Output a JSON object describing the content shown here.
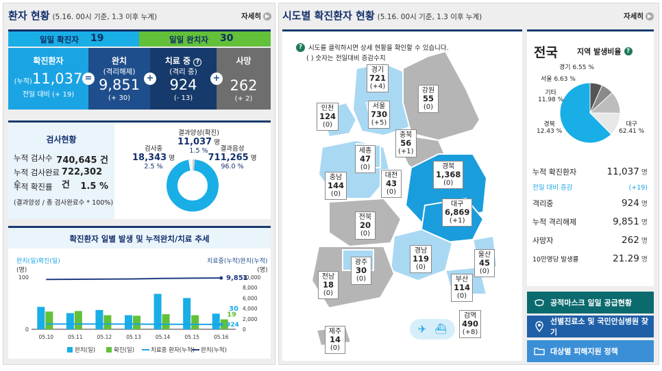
{
  "left": {
    "title": "환자 현황",
    "subtitle": "(5.16. 00시 기준, 1.3 이후 누계)",
    "more": "자세히",
    "daily_conf_label": "일일 확진자",
    "daily_conf": "19",
    "daily_rel_label": "일일 완치자",
    "daily_rel": "30",
    "confirmed": {
      "label": "확진환자",
      "prefix": "(누적)",
      "value": "11,037",
      "delta": "전일 대비 (+ 19)"
    },
    "released": {
      "label": "완치",
      "sub": "(격리해제)",
      "value": "9,851",
      "delta": "(+ 30)"
    },
    "treating": {
      "label": "치료 중",
      "sub": "(격리 중)",
      "value": "924",
      "delta": "(- 13)"
    },
    "deaths": {
      "label": "사망",
      "value": "262",
      "delta": "(+ 2)"
    },
    "ops": {
      "eq": "=",
      "plus": "+"
    },
    "test": {
      "title": "검사현황",
      "rows": [
        {
          "k": "누적 검사수",
          "v": "740,645 건"
        },
        {
          "k": "누적 검사완료수",
          "v": "722,302 건"
        },
        {
          "k": "누적 확진률",
          "v": "1.5 %"
        }
      ],
      "note": "(결과양성 / 총 검사완료수 * 100%)",
      "pos_label": "결과양성(확진)",
      "pos_value": "11,037",
      "pos_unit": "명",
      "pos_pct": "1.5 %",
      "testing_label": "검사중",
      "testing_value": "18,343",
      "testing_unit": "명",
      "testing_pct": "2.5 %",
      "neg_label": "결과음성",
      "neg_value": "711,265",
      "neg_unit": "명",
      "neg_pct": "96.0 %"
    },
    "trend": {
      "title": "확진환자 일별 발생 및 누적완치/치료 추세",
      "left_axis": "완치(일)확진(일)",
      "left_unit": "(명)",
      "right_axis": "치료중(누적)완치(누적)",
      "right_unit": "(명)",
      "yl": [
        "100",
        "0"
      ],
      "yr": [
        "10,000",
        "8,000",
        "6,000",
        "4,000",
        "2,000",
        "0"
      ],
      "last_rel": "30",
      "last_conf": "19",
      "last_treat": "924",
      "cum_rel": "9,851",
      "legend": [
        "완치(일)",
        "확진(일)",
        "치료중 환자(누적)",
        "완치(누적)"
      ]
    }
  },
  "chart_data": {
    "type": "bar",
    "categories": [
      "05.10",
      "05.11",
      "05.12",
      "05.13",
      "05.14",
      "05.15",
      "05.16"
    ],
    "series": [
      {
        "name": "완치(일)",
        "values": [
          43,
          31,
          37,
          27,
          68,
          60,
          30
        ]
      },
      {
        "name": "확진(일)",
        "values": [
          34,
          35,
          27,
          26,
          29,
          27,
          19
        ]
      },
      {
        "name": "치료중 환자(누적)",
        "values": [
          1008,
          1005,
          999,
          981,
          962,
          937,
          924
        ]
      },
      {
        "name": "완치(누적)",
        "values": [
          9568,
          9610,
          9632,
          9665,
          9762,
          9821,
          9851
        ]
      }
    ],
    "ylim_left": [
      0,
      100
    ],
    "ylim_right": [
      0,
      10000
    ]
  },
  "map": {
    "title": "시도별 확진환자 현황",
    "subtitle": "(5.16. 00시 기준, 1.3 이후 누계)",
    "more": "자세히",
    "help": "시도를 클릭하시면 상세 현황을 확인할 수 있습니다.",
    "help2": "( ) 숫자는 전일대비 증감수치",
    "regions": [
      {
        "n": "경기",
        "v": "721",
        "d": "(+4)"
      },
      {
        "n": "강원",
        "v": "55",
        "d": "(0)"
      },
      {
        "n": "인천",
        "v": "124",
        "d": "(0)"
      },
      {
        "n": "서울",
        "v": "730",
        "d": "(+5)"
      },
      {
        "n": "충북",
        "v": "56",
        "d": "(+1)"
      },
      {
        "n": "세종",
        "v": "47",
        "d": "(0)"
      },
      {
        "n": "충남",
        "v": "144",
        "d": "(0)"
      },
      {
        "n": "대전",
        "v": "43",
        "d": "(0)"
      },
      {
        "n": "경북",
        "v": "1,368",
        "d": "(0)"
      },
      {
        "n": "대구",
        "v": "6,869",
        "d": "(+1)"
      },
      {
        "n": "전북",
        "v": "20",
        "d": "(0)"
      },
      {
        "n": "경남",
        "v": "119",
        "d": "(0)"
      },
      {
        "n": "울산",
        "v": "45",
        "d": "(0)"
      },
      {
        "n": "광주",
        "v": "30",
        "d": "(0)"
      },
      {
        "n": "전남",
        "v": "18",
        "d": "(0)"
      },
      {
        "n": "부산",
        "v": "114",
        "d": "(0)"
      },
      {
        "n": "검역",
        "v": "490",
        "d": "(+8)"
      },
      {
        "n": "제주",
        "v": "14",
        "d": "(0)"
      }
    ]
  },
  "nation": {
    "title": "전국",
    "ratio_label": "지역 발생비율",
    "pie": [
      {
        "n": "대구",
        "p": "62.41 %",
        "v": 62.41,
        "c": "#19aee6"
      },
      {
        "n": "경북",
        "p": "12.43 %",
        "v": 12.43,
        "c": "#e8e8e8"
      },
      {
        "n": "기타",
        "p": "11.98 %",
        "v": 11.98,
        "c": "#bdbdbd"
      },
      {
        "n": "서울",
        "p": "6.63 %",
        "v": 6.63,
        "c": "#8a8a8a"
      },
      {
        "n": "경기",
        "p": "6.55 %",
        "v": 6.55,
        "c": "#555555"
      }
    ],
    "stats": [
      {
        "k": "누적 확진환자",
        "v": "11,037",
        "u": "명"
      },
      {
        "k": "전일 대비 증감",
        "v": "(+19)",
        "u": ""
      },
      {
        "k": "격리중",
        "v": "924",
        "u": "명"
      },
      {
        "k": "누적 격리해제",
        "v": "9,851",
        "u": "명"
      },
      {
        "k": "사망자",
        "v": "262",
        "u": "명"
      },
      {
        "k": "10만명당 발생률",
        "v": "21.29",
        "u": "명"
      }
    ],
    "buttons": [
      "공적마스크 일일 공급현황",
      "선별진료소 및 국민안심병원 찾기",
      "대상별 피해지원 정책"
    ]
  }
}
